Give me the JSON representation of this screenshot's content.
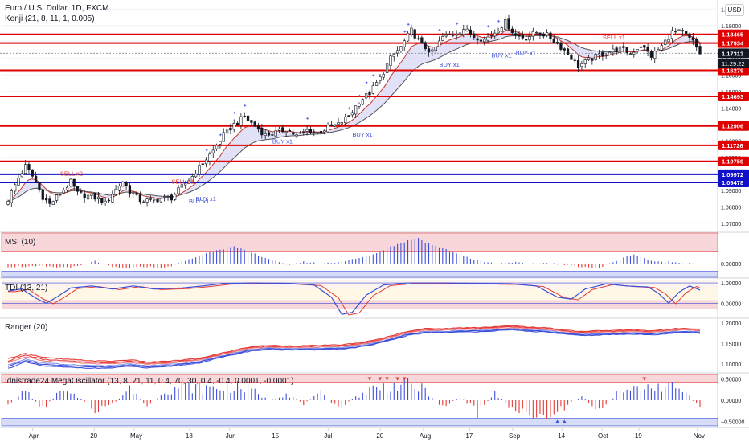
{
  "header": {
    "title": "Euro / U.S. Dollar, 1D, FXCM",
    "indicator": "Kenji (21, 8, 11, 1, 0.005)",
    "currency_button": "USD"
  },
  "colors": {
    "bull": "#26a69a",
    "bear": "#ef5350",
    "candle_body_up": "#ffffff",
    "candle_body_down": "#131722",
    "red_level": "#e00000",
    "blue_level": "#1010c8",
    "ma_dark": "#555555",
    "ma_red": "#c0392b",
    "band_fill": "#c8c8f0",
    "band_fill_green": "#cfe8cf",
    "zone_red": "#f8d7da",
    "zone_blue": "#d6dcf7",
    "osc_blue": "#3d4fd9",
    "osc_red": "#e53935",
    "star_blue": "#5b6ee8"
  },
  "chart_data": [
    {
      "type": "candlestick",
      "pane": "price",
      "title": "Euro / U.S. Dollar, 1D, FXCM",
      "ylim": [
        1.065,
        1.2055
      ],
      "y_ticks": [
        1.07,
        1.08,
        1.09,
        1.1,
        1.11,
        1.12,
        1.13,
        1.14,
        1.15,
        1.16,
        1.17,
        1.18,
        1.19,
        1.2
      ],
      "x_ticks": [
        "Apr",
        "20",
        "May",
        "18",
        "Jun",
        "15",
        "Jul",
        "20",
        "Aug",
        "17",
        "Sep",
        "14",
        "Oct",
        "19",
        "Nov"
      ],
      "close_path": [
        [
          0,
          1.0845
        ],
        [
          3,
          1.0975
        ],
        [
          5,
          1.1045
        ],
        [
          7,
          1.0985
        ],
        [
          10,
          1.086
        ],
        [
          12,
          1.0815
        ],
        [
          15,
          1.088
        ],
        [
          18,
          1.095
        ],
        [
          20,
          1.088
        ],
        [
          23,
          1.0865
        ],
        [
          26,
          1.085
        ],
        [
          28,
          1.082
        ],
        [
          30,
          1.088
        ],
        [
          33,
          1.0955
        ],
        [
          35,
          1.089
        ],
        [
          38,
          1.084
        ],
        [
          41,
          1.0835
        ],
        [
          44,
          1.085
        ],
        [
          47,
          1.0855
        ],
        [
          50,
          1.092
        ],
        [
          53,
          1.0985
        ],
        [
          56,
          1.1065
        ],
        [
          59,
          1.114
        ],
        [
          62,
          1.1235
        ],
        [
          65,
          1.13
        ],
        [
          68,
          1.1345
        ],
        [
          71,
          1.129
        ],
        [
          74,
          1.1235
        ],
        [
          77,
          1.125
        ],
        [
          80,
          1.127
        ],
        [
          83,
          1.123
        ],
        [
          86,
          1.1265
        ],
        [
          89,
          1.125
        ],
        [
          92,
          1.128
        ],
        [
          95,
          1.13
        ],
        [
          98,
          1.135
        ],
        [
          101,
          1.144
        ],
        [
          104,
          1.149
        ],
        [
          107,
          1.158
        ],
        [
          110,
          1.17
        ],
        [
          113,
          1.177
        ],
        [
          116,
          1.187
        ],
        [
          119,
          1.178
        ],
        [
          122,
          1.1735
        ],
        [
          125,
          1.183
        ],
        [
          128,
          1.185
        ],
        [
          131,
          1.188
        ],
        [
          134,
          1.1835
        ],
        [
          137,
          1.1815
        ],
        [
          140,
          1.186
        ],
        [
          143,
          1.192
        ],
        [
          146,
          1.184
        ],
        [
          149,
          1.1825
        ],
        [
          152,
          1.186
        ],
        [
          155,
          1.184
        ],
        [
          158,
          1.179
        ],
        [
          161,
          1.173
        ],
        [
          164,
          1.1655
        ],
        [
          167,
          1.169
        ],
        [
          170,
          1.172
        ],
        [
          173,
          1.174
        ],
        [
          176,
          1.176
        ],
        [
          179,
          1.173
        ],
        [
          182,
          1.178
        ],
        [
          185,
          1.1715
        ],
        [
          188,
          1.1775
        ],
        [
          191,
          1.186
        ],
        [
          194,
          1.186
        ],
        [
          197,
          1.18
        ],
        [
          199,
          1.1731
        ]
      ],
      "price_levels": [
        {
          "value": 1.18465,
          "label": "1.18465",
          "color": "red"
        },
        {
          "value": 1.17934,
          "label": "1.17934",
          "color": "red"
        },
        {
          "value": 1.17313,
          "label": "1.17313",
          "color": "dark"
        },
        {
          "value": 1.16279,
          "label": "1.16279",
          "color": "red"
        },
        {
          "value": 1.14693,
          "label": "1.14693",
          "color": "red"
        },
        {
          "value": 1.12906,
          "label": "1.12906",
          "color": "red"
        },
        {
          "value": 1.11726,
          "label": "1.11726",
          "color": "red"
        },
        {
          "value": 1.10759,
          "label": "1.10759",
          "color": "red"
        },
        {
          "value": 1.09972,
          "label": "1.09972",
          "color": "blue"
        },
        {
          "value": 1.09478,
          "label": "1.09478",
          "color": "blue"
        }
      ],
      "countdown": {
        "value": 1.1728,
        "label": "11:29:22"
      },
      "annotations": [
        {
          "text": "SELL x2",
          "x": 15,
          "y": 1.099,
          "color": "red"
        },
        {
          "text": "SELL x1",
          "x": 47,
          "y": 1.094,
          "color": "red"
        },
        {
          "text": "BUY x1",
          "x": 54,
          "y": 1.0835,
          "color": "blue"
        },
        {
          "text": "BUY x1",
          "x": 52,
          "y": 1.082,
          "color": "blue"
        },
        {
          "text": "BUY x1",
          "x": 76,
          "y": 1.1185,
          "color": "blue"
        },
        {
          "text": "BUY x1",
          "x": 99,
          "y": 1.1225,
          "color": "blue"
        },
        {
          "text": "BUY x1",
          "x": 124,
          "y": 1.165,
          "color": "blue"
        },
        {
          "text": "BUY x1",
          "x": 139,
          "y": 1.1705,
          "color": "blue"
        },
        {
          "text": "BUY x1",
          "x": 146,
          "y": 1.172,
          "color": "blue"
        },
        {
          "text": "SELL x1",
          "x": 171,
          "y": 1.1815,
          "color": "red"
        }
      ]
    },
    {
      "type": "bar",
      "pane": "MSI",
      "title": "MSI (10)",
      "ylim": [
        -0.09,
        0.2
      ],
      "y_ticks": [
        0.0
      ],
      "value_path": [
        [
          0,
          -0.02
        ],
        [
          10,
          -0.02
        ],
        [
          15,
          -0.025
        ],
        [
          20,
          -0.02
        ],
        [
          25,
          0.015
        ],
        [
          30,
          -0.025
        ],
        [
          35,
          -0.03
        ],
        [
          40,
          -0.02
        ],
        [
          45,
          -0.03
        ],
        [
          50,
          0.01
        ],
        [
          55,
          0.05
        ],
        [
          60,
          0.09
        ],
        [
          65,
          0.11
        ],
        [
          70,
          0.07
        ],
        [
          75,
          0.03
        ],
        [
          80,
          -0.01
        ],
        [
          85,
          0.01
        ],
        [
          90,
          0.0
        ],
        [
          95,
          0.01
        ],
        [
          100,
          0.03
        ],
        [
          105,
          0.06
        ],
        [
          110,
          0.11
        ],
        [
          115,
          0.15
        ],
        [
          118,
          0.17
        ],
        [
          120,
          0.14
        ],
        [
          125,
          0.1
        ],
        [
          130,
          0.06
        ],
        [
          135,
          0.02
        ],
        [
          140,
          0.0
        ],
        [
          145,
          0.01
        ],
        [
          150,
          -0.005
        ],
        [
          155,
          0.005
        ],
        [
          160,
          -0.01
        ],
        [
          165,
          -0.02
        ],
        [
          170,
          -0.03
        ],
        [
          175,
          0.02
        ],
        [
          180,
          0.06
        ],
        [
          183,
          0.035
        ],
        [
          186,
          0.01
        ],
        [
          190,
          0.01
        ],
        [
          195,
          0.005
        ],
        [
          199,
          0.0
        ]
      ]
    },
    {
      "type": "line",
      "pane": "TDI",
      "title": "TDI (13, 21)",
      "ylim": [
        -0.7,
        1.2
      ],
      "y_ticks": [
        0.0,
        1.0
      ],
      "value_path": [
        [
          0,
          0.6
        ],
        [
          4,
          0.7
        ],
        [
          8,
          0.25
        ],
        [
          11,
          0.0
        ],
        [
          14,
          0.3
        ],
        [
          18,
          0.75
        ],
        [
          24,
          0.85
        ],
        [
          30,
          0.7
        ],
        [
          36,
          0.85
        ],
        [
          42,
          0.7
        ],
        [
          50,
          0.75
        ],
        [
          56,
          0.85
        ],
        [
          62,
          0.97
        ],
        [
          70,
          1.0
        ],
        [
          80,
          0.98
        ],
        [
          88,
          0.9
        ],
        [
          93,
          0.3
        ],
        [
          96,
          -0.55
        ],
        [
          99,
          -0.45
        ],
        [
          103,
          0.4
        ],
        [
          108,
          0.9
        ],
        [
          115,
          1.0
        ],
        [
          125,
          1.0
        ],
        [
          135,
          0.98
        ],
        [
          145,
          0.95
        ],
        [
          152,
          0.85
        ],
        [
          158,
          0.3
        ],
        [
          162,
          0.2
        ],
        [
          166,
          0.7
        ],
        [
          172,
          0.95
        ],
        [
          178,
          0.85
        ],
        [
          184,
          0.8
        ],
        [
          187,
          0.5
        ],
        [
          190,
          0.0
        ],
        [
          193,
          0.55
        ],
        [
          196,
          0.85
        ],
        [
          199,
          0.65
        ]
      ]
    },
    {
      "type": "line",
      "pane": "Ranger",
      "title": "Ranger (20)",
      "ylim": [
        1.08,
        1.21
      ],
      "y_ticks": [
        1.1,
        1.15,
        1.2
      ],
      "value_path": [
        [
          0,
          1.1
        ],
        [
          5,
          1.115
        ],
        [
          10,
          1.105
        ],
        [
          15,
          1.102
        ],
        [
          20,
          1.1
        ],
        [
          25,
          1.098
        ],
        [
          30,
          1.098
        ],
        [
          35,
          1.102
        ],
        [
          40,
          1.097
        ],
        [
          45,
          1.099
        ],
        [
          50,
          1.103
        ],
        [
          55,
          1.108
        ],
        [
          60,
          1.118
        ],
        [
          65,
          1.128
        ],
        [
          70,
          1.137
        ],
        [
          75,
          1.14
        ],
        [
          80,
          1.139
        ],
        [
          85,
          1.139
        ],
        [
          90,
          1.14
        ],
        [
          95,
          1.141
        ],
        [
          100,
          1.145
        ],
        [
          105,
          1.152
        ],
        [
          110,
          1.163
        ],
        [
          115,
          1.175
        ],
        [
          120,
          1.181
        ],
        [
          125,
          1.181
        ],
        [
          130,
          1.183
        ],
        [
          135,
          1.184
        ],
        [
          140,
          1.186
        ],
        [
          145,
          1.188
        ],
        [
          150,
          1.185
        ],
        [
          155,
          1.183
        ],
        [
          160,
          1.178
        ],
        [
          165,
          1.174
        ],
        [
          170,
          1.176
        ],
        [
          175,
          1.177
        ],
        [
          180,
          1.178
        ],
        [
          185,
          1.176
        ],
        [
          190,
          1.18
        ],
        [
          195,
          1.182
        ],
        [
          199,
          1.18
        ]
      ]
    },
    {
      "type": "bar",
      "pane": "MegaOscillator",
      "title": "Idnistrade24 MegaOscillator (13, 8, 21, 11, 0.4, 70, 30, 0.4, -0.4, 0.0001, -0.0001)",
      "ylim": [
        -0.62,
        0.62
      ],
      "y_ticks": [
        0.5,
        0.0,
        -0.5
      ],
      "y_tick_labels": [
        "0.50000",
        "0.00000",
        "−0.50000"
      ],
      "value_path": [
        [
          0,
          -0.2
        ],
        [
          5,
          0.3
        ],
        [
          10,
          -0.25
        ],
        [
          15,
          0.25
        ],
        [
          20,
          0.1
        ],
        [
          25,
          -0.3
        ],
        [
          30,
          -0.15
        ],
        [
          35,
          0.35
        ],
        [
          40,
          -0.2
        ],
        [
          45,
          0.3
        ],
        [
          50,
          0.4
        ],
        [
          55,
          0.35
        ],
        [
          60,
          0.35
        ],
        [
          65,
          0.4
        ],
        [
          70,
          0.3
        ],
        [
          75,
          0.0
        ],
        [
          80,
          0.2
        ],
        [
          85,
          -0.1
        ],
        [
          90,
          0.2
        ],
        [
          95,
          -0.3
        ],
        [
          100,
          0.1
        ],
        [
          105,
          0.35
        ],
        [
          110,
          0.4
        ],
        [
          115,
          0.45
        ],
        [
          120,
          0.3
        ],
        [
          125,
          -0.2
        ],
        [
          130,
          0.1
        ],
        [
          135,
          -0.35
        ],
        [
          140,
          0.2
        ],
        [
          145,
          -0.25
        ],
        [
          150,
          -0.4
        ],
        [
          155,
          -0.45
        ],
        [
          160,
          -0.2
        ],
        [
          165,
          0.1
        ],
        [
          170,
          -0.3
        ],
        [
          175,
          0.2
        ],
        [
          180,
          0.3
        ],
        [
          185,
          0.45
        ],
        [
          190,
          0.4
        ],
        [
          195,
          0.25
        ],
        [
          199,
          -0.3
        ]
      ]
    }
  ],
  "axis_labels": {
    "price_ticks": [
      "1.07000",
      "1.08000",
      "1.09000",
      "1.10000",
      "1.11000",
      "1.12000",
      "1.13000",
      "1.14000",
      "1.15000",
      "1.16000",
      "1.17000",
      "1.18000",
      "1.19000",
      "1.20000"
    ],
    "msi_ticks": [
      "0.00000"
    ],
    "tdi_ticks": [
      "1.00000",
      "0.00000"
    ],
    "ranger_ticks": [
      "1.10000",
      "1.15000",
      "1.20000"
    ],
    "mega_ticks": [
      "0.50000",
      "0.00000",
      "−0.50000"
    ]
  }
}
